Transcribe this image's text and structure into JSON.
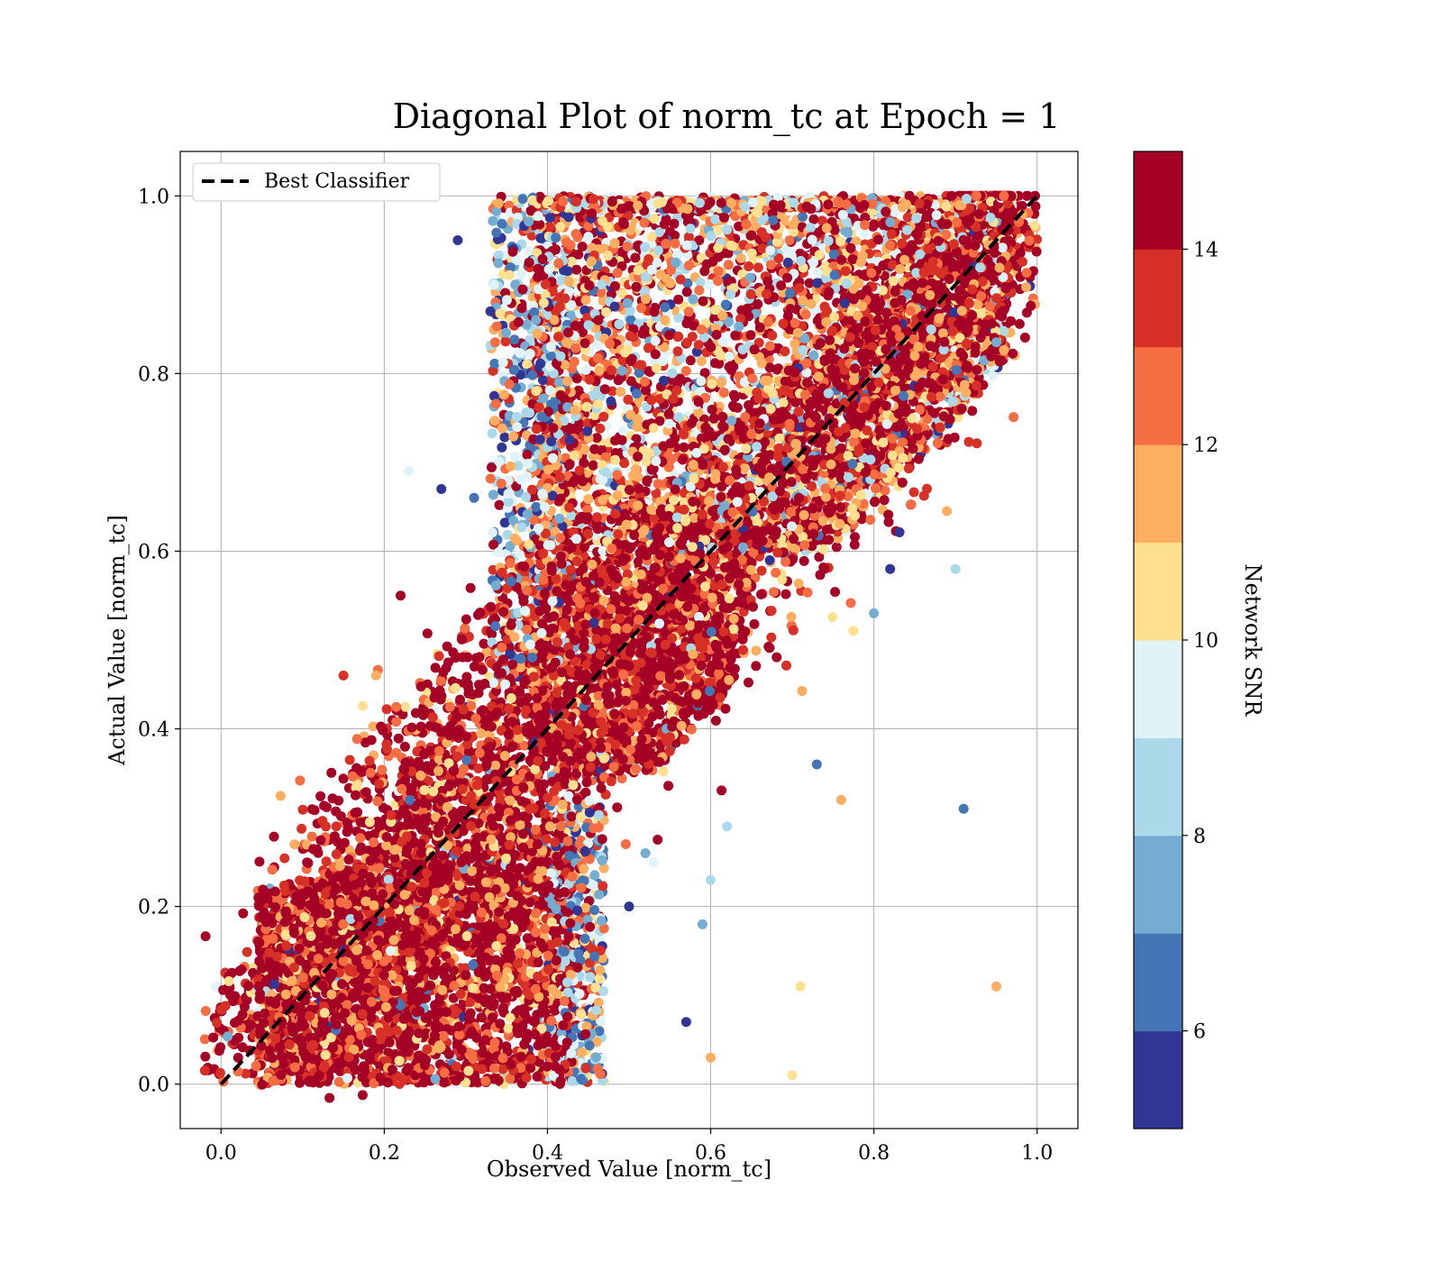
{
  "chart_data": {
    "type": "scatter",
    "title": "Diagonal Plot of norm_tc at Epoch = 1",
    "xlabel": "Observed Value [norm_tc]",
    "ylabel": "Actual Value [norm_tc]",
    "xlim": [
      -0.05,
      1.05
    ],
    "ylim": [
      -0.05,
      1.05
    ],
    "xticks": [
      "0.0",
      "0.2",
      "0.4",
      "0.6",
      "0.8",
      "1.0"
    ],
    "yticks": [
      "0.0",
      "0.2",
      "0.4",
      "0.6",
      "0.8",
      "1.0"
    ],
    "grid": true,
    "legend": {
      "placement": "top-left",
      "entries": [
        "Best Classifier"
      ]
    },
    "reference_line": {
      "name": "Best Classifier",
      "x": [
        0,
        1
      ],
      "y": [
        0,
        1
      ],
      "style": "dashed",
      "color": "#000000"
    },
    "colorbar": {
      "label": "Network SNR",
      "min": 5,
      "max": 15,
      "ticks": [
        "6",
        "8",
        "10",
        "12",
        "14"
      ],
      "colors": [
        "#313695",
        "#4575b4",
        "#74add1",
        "#abd9e9",
        "#e0f3f8",
        "#fee090",
        "#fdae61",
        "#f46d43",
        "#d73027",
        "#a50026"
      ]
    },
    "clusters": [
      {
        "x_range": [
          0.04,
          0.44
        ],
        "y_range": [
          0.0,
          0.22
        ],
        "density": "dense",
        "dominant_snr": "high"
      },
      {
        "x_range": [
          0.35,
          0.97
        ],
        "y_range": [
          0.6,
          1.0
        ],
        "density": "dense",
        "dominant_snr": "mixed"
      },
      {
        "x_range": [
          0.0,
          1.0
        ],
        "y_range": [
          0.0,
          1.0
        ],
        "density": "dense band along diagonal",
        "dominant_snr": "high"
      }
    ],
    "outliers": [
      {
        "x": 0.29,
        "y": 0.95,
        "snr": 5.5
      },
      {
        "x": 0.33,
        "y": 0.87,
        "snr": 5.5
      },
      {
        "x": 0.27,
        "y": 0.67,
        "snr": 5.5
      },
      {
        "x": 0.31,
        "y": 0.66,
        "snr": 6.5
      },
      {
        "x": 0.23,
        "y": 0.69,
        "snr": 9.5
      },
      {
        "x": 0.73,
        "y": 0.36,
        "snr": 6.5
      },
      {
        "x": 0.91,
        "y": 0.31,
        "snr": 6.5
      },
      {
        "x": 0.76,
        "y": 0.32,
        "snr": 11.5
      },
      {
        "x": 0.62,
        "y": 0.29,
        "snr": 8.5
      },
      {
        "x": 0.59,
        "y": 0.18,
        "snr": 7.5
      },
      {
        "x": 0.95,
        "y": 0.11,
        "snr": 11.5
      },
      {
        "x": 0.71,
        "y": 0.11,
        "snr": 10.5
      },
      {
        "x": 0.57,
        "y": 0.07,
        "snr": 5.5
      },
      {
        "x": 0.6,
        "y": 0.03,
        "snr": 11.5
      },
      {
        "x": 0.7,
        "y": 0.01,
        "snr": 10.5
      },
      {
        "x": 0.9,
        "y": 0.58,
        "snr": 8.5
      },
      {
        "x": 0.8,
        "y": 0.53,
        "snr": 7.5
      },
      {
        "x": 0.82,
        "y": 0.58,
        "snr": 5.5
      },
      {
        "x": 0.15,
        "y": 0.46,
        "snr": 13.5
      },
      {
        "x": 0.19,
        "y": 0.46,
        "snr": 11.5
      },
      {
        "x": 0.22,
        "y": 0.55,
        "snr": 14.5
      },
      {
        "x": 0.09,
        "y": 0.27,
        "snr": 11.5
      },
      {
        "x": 0.5,
        "y": 0.2,
        "snr": 5.5
      },
      {
        "x": 0.52,
        "y": 0.26,
        "snr": 7.5
      },
      {
        "x": 0.6,
        "y": 0.23,
        "snr": 8.5
      },
      {
        "x": 0.53,
        "y": 0.25,
        "snr": 9.5
      }
    ]
  }
}
